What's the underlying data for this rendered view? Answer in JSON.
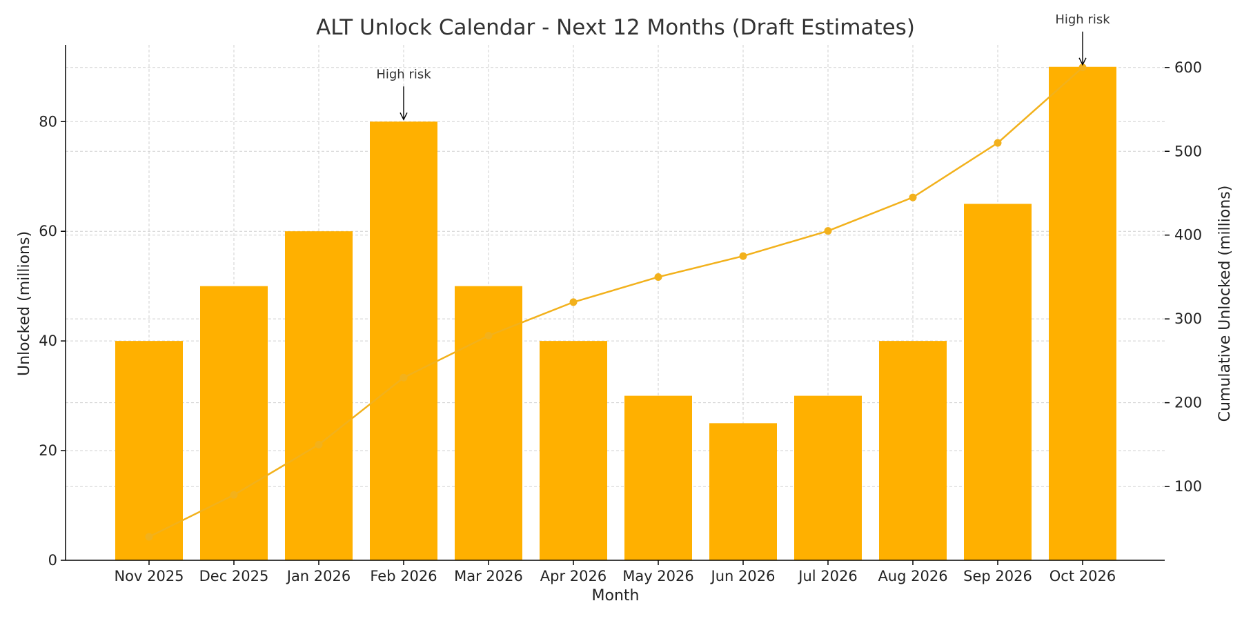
{
  "chart_data": {
    "type": "bar",
    "title": "ALT Unlock Calendar - Next 12 Months (Draft Estimates)",
    "xlabel": "Month",
    "ylabel": "Unlocked (millions)",
    "y2label": "Cumulative Unlocked (millions)",
    "categories": [
      "Nov 2025",
      "Dec 2025",
      "Jan 2026",
      "Feb 2026",
      "Mar 2026",
      "Apr 2026",
      "May 2026",
      "Jun 2026",
      "Jul 2026",
      "Aug 2026",
      "Sep 2026",
      "Oct 2026"
    ],
    "series": [
      {
        "type": "bar",
        "axis": "left",
        "values": [
          40,
          50,
          60,
          80,
          50,
          40,
          30,
          25,
          30,
          40,
          65,
          90
        ]
      },
      {
        "type": "line",
        "axis": "right",
        "values": [
          40,
          90,
          150,
          230,
          280,
          320,
          350,
          375,
          405,
          445,
          510,
          600
        ]
      }
    ],
    "ylim": [
      0,
      94
    ],
    "y2lim": [
      12,
      627
    ],
    "yticks": [
      0,
      20,
      40,
      60,
      80
    ],
    "y2ticks": [
      100,
      200,
      300,
      400,
      500,
      600
    ],
    "grid": true,
    "annotations": [
      {
        "text": "High risk",
        "category": "Feb 2026",
        "value": 80
      },
      {
        "text": "High risk",
        "category": "Oct 2026",
        "value": 90
      }
    ],
    "colors": {
      "bar": "#FFB000",
      "line": "#F2B11C"
    }
  }
}
